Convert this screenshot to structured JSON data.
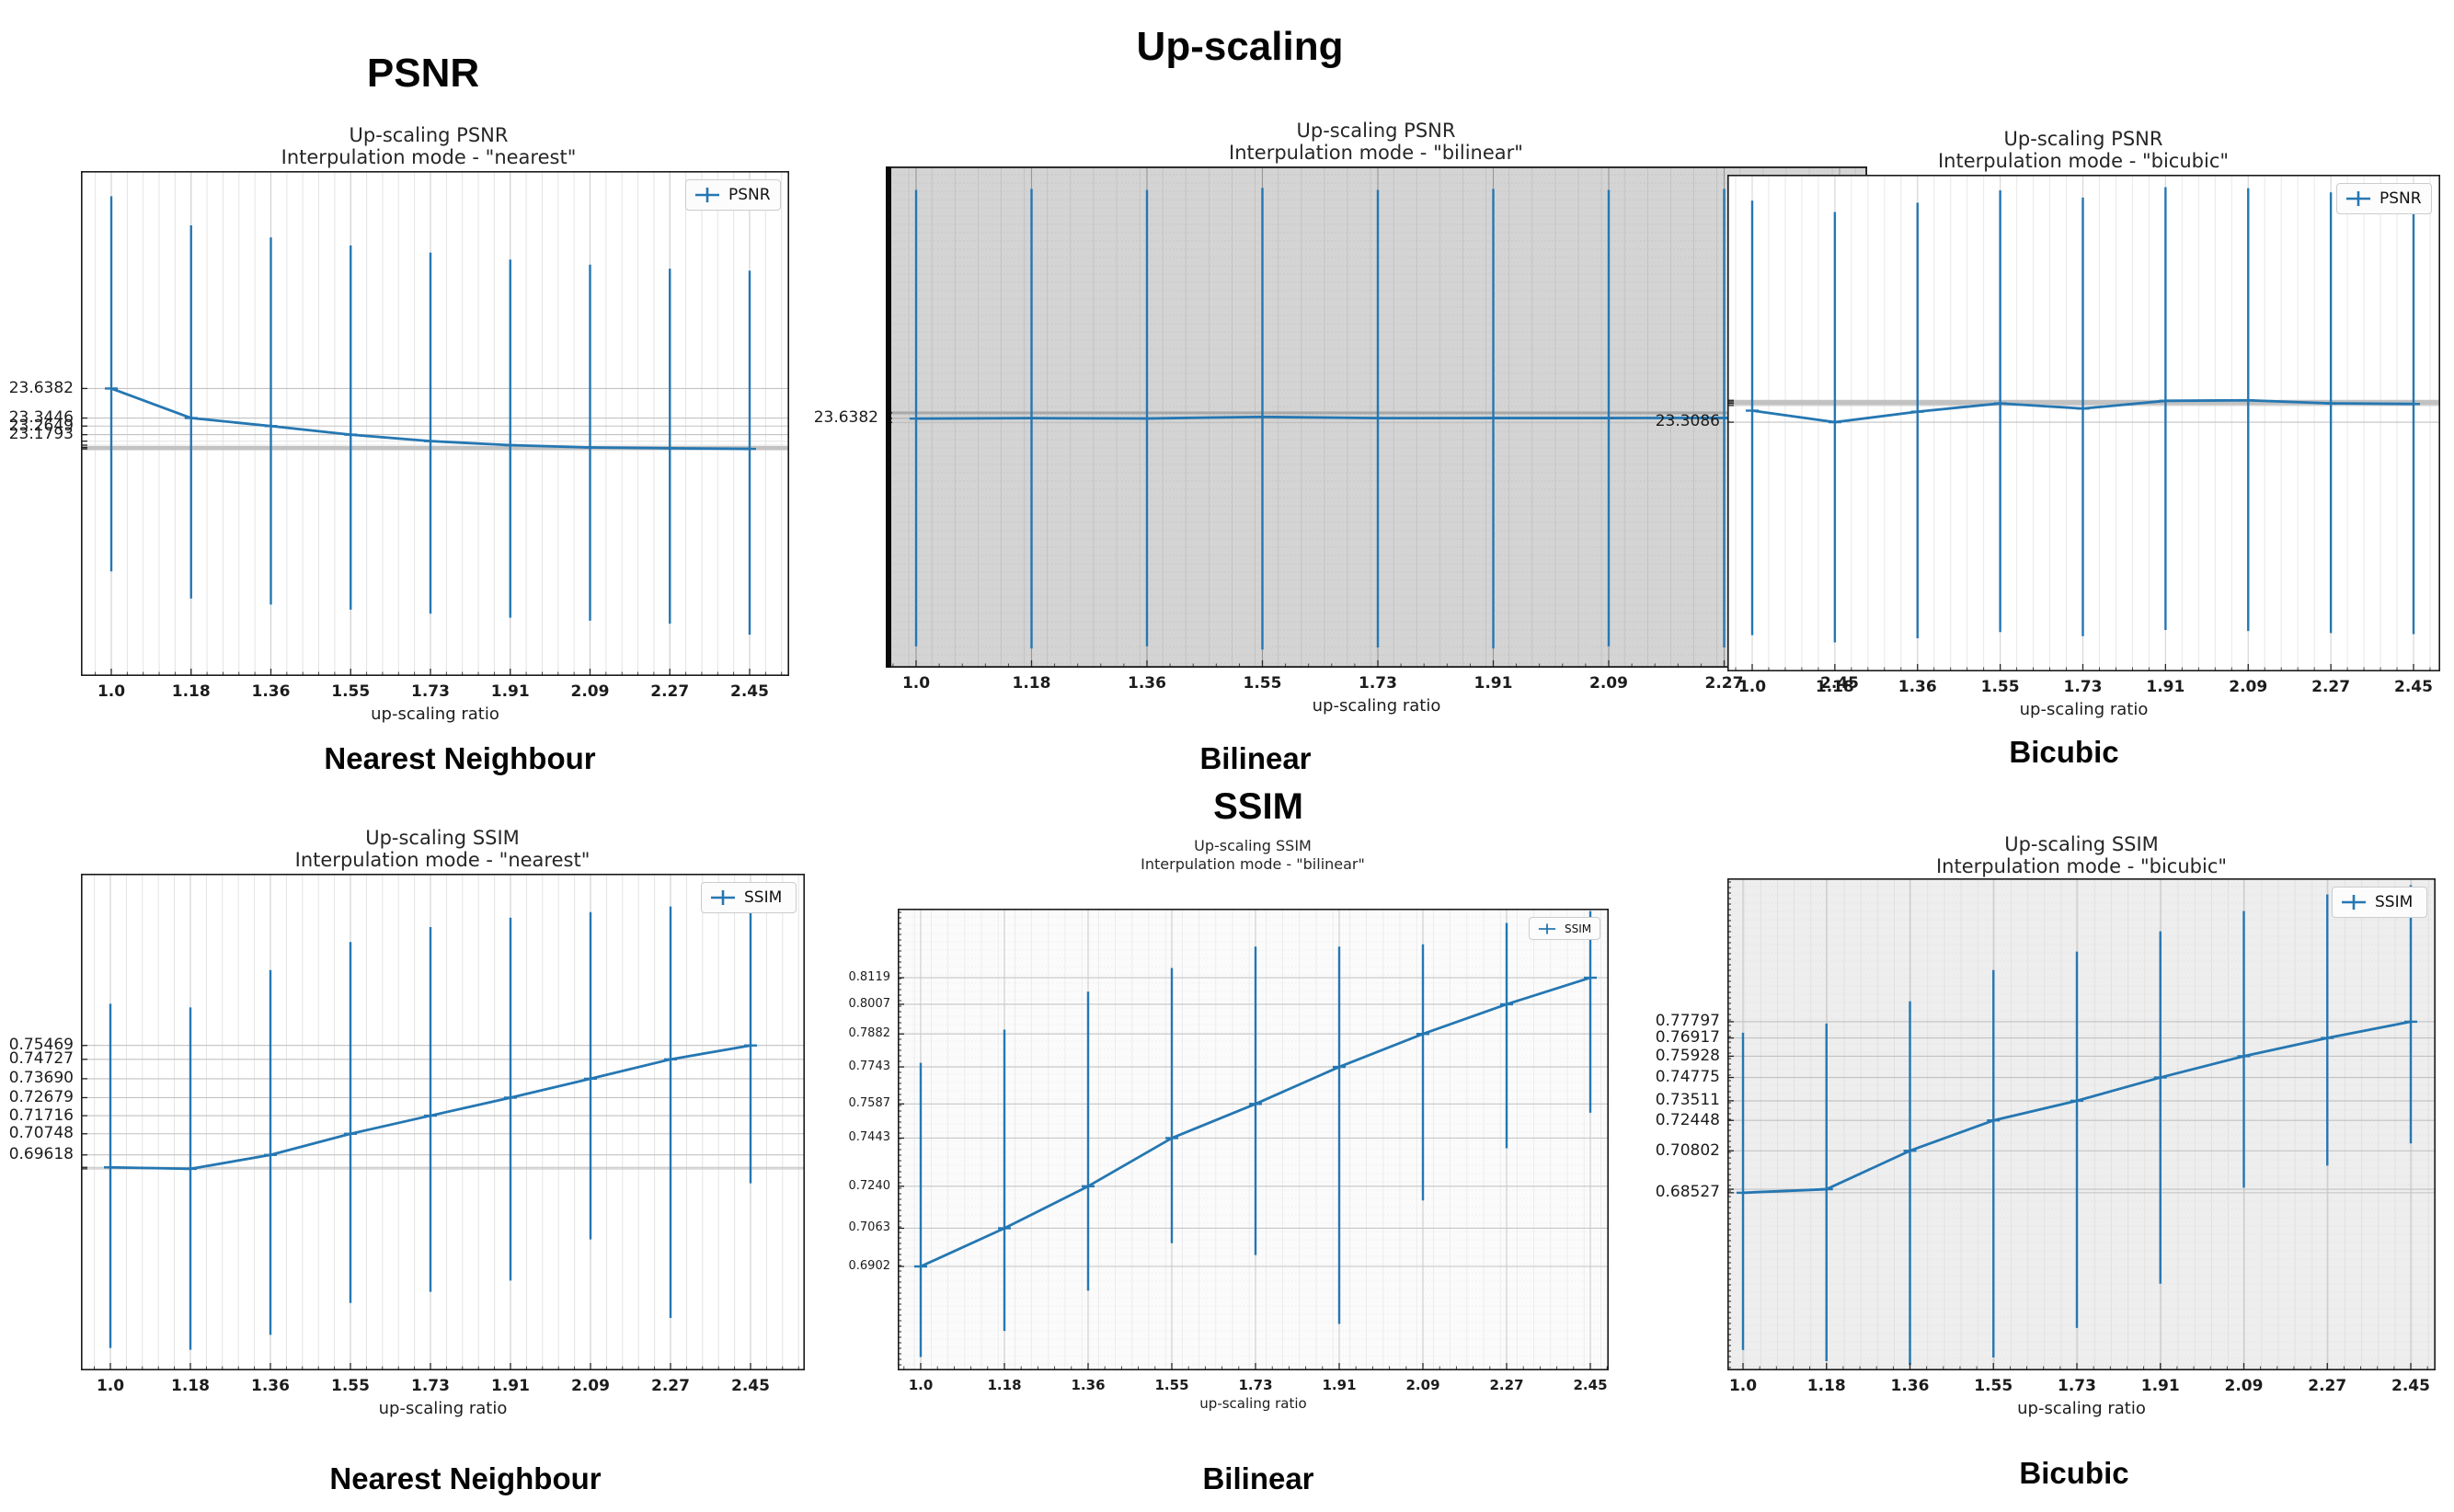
{
  "page": {
    "heading_psnr": "PSNR",
    "heading_upscaling": "Up-scaling",
    "heading_ssim": "SSIM",
    "row1_labels": [
      "Nearest Neighbour",
      "Bilinear",
      "Bicubic"
    ],
    "row2_labels": [
      "Nearest Neighbour",
      "Bilinear",
      "Bicubic"
    ],
    "accent_color": "#2577b2"
  },
  "chart_data": [
    {
      "id": "psnr-nearest",
      "type": "line",
      "title": [
        "Up-scaling PSNR",
        "Interpulation mode - \"nearest\""
      ],
      "legend": "PSNR",
      "xlabel": "up-scaling ratio",
      "x_labels": [
        "1.0",
        "1.18",
        "1.36",
        "1.55",
        "1.73",
        "1.91",
        "2.09",
        "2.27",
        "2.45"
      ],
      "x": [
        1.0,
        1.18,
        1.36,
        1.55,
        1.73,
        1.91,
        2.09,
        2.27,
        2.45
      ],
      "values": [
        23.6382,
        23.3446,
        23.2649,
        23.1793,
        23.115,
        23.075,
        23.052,
        23.044,
        23.038
      ],
      "err_high": [
        25.55,
        25.26,
        25.14,
        25.06,
        24.99,
        24.92,
        24.87,
        24.83,
        24.81
      ],
      "err_low": [
        21.82,
        21.55,
        21.49,
        21.44,
        21.4,
        21.36,
        21.33,
        21.3,
        21.19
      ],
      "ylim": [
        20.78,
        25.8
      ],
      "yticks": [
        {
          "value": 23.6382,
          "label": "23.6382"
        },
        {
          "value": 23.3446,
          "label": "23.3446"
        },
        {
          "value": 23.2649,
          "label": "23.2649"
        },
        {
          "value": 23.1793,
          "label": "23.1793"
        },
        {
          "value": 23.115,
          "label": "",
          "style": "faint"
        },
        {
          "value": 23.075,
          "label": "",
          "style": "faint"
        },
        {
          "value": 23.052,
          "label": "",
          "style": "thick"
        },
        {
          "value": 23.038,
          "label": "",
          "style": "thick"
        }
      ],
      "line_color": "#2577b2",
      "plot_bg": "#ffffff",
      "grid_minor": "#e4e4e4",
      "grid_major_v": "#cfcfcf",
      "grid_major_h": "#c2c2c2"
    },
    {
      "id": "psnr-bilinear",
      "type": "line",
      "title": [
        "Up-scaling PSNR",
        "Interpulation mode - \"bilinear\""
      ],
      "legend": "PSNR",
      "xlabel": "up-scaling ratio",
      "x_labels": [
        "1.0",
        "1.18",
        "1.36",
        "1.55",
        "1.73",
        "1.91",
        "2.09",
        "2.27",
        "2.45"
      ],
      "x": [
        1.0,
        1.18,
        1.36,
        1.55,
        1.73,
        1.91,
        2.09,
        2.27,
        2.45
      ],
      "values": [
        23.636,
        23.64,
        23.637,
        23.652,
        23.64,
        23.641,
        23.641,
        23.642,
        23.64
      ],
      "err_high": [
        25.78,
        25.79,
        25.78,
        25.8,
        25.78,
        25.79,
        25.78,
        25.79,
        25.77
      ],
      "err_low": [
        21.5,
        21.48,
        21.5,
        21.47,
        21.49,
        21.48,
        21.5,
        21.49,
        21.51
      ],
      "ylim": [
        21.3,
        26.0
      ],
      "yticks": [
        {
          "value": 23.6382,
          "label": "23.6382"
        },
        {
          "value": 23.69,
          "label": "",
          "style": "thick"
        },
        {
          "value": 23.6,
          "label": "",
          "style": "faint"
        }
      ],
      "line_color": "#2577b2",
      "plot_bg": "#d4d4d4",
      "grid_minor": "#bfbfbf",
      "grid_major_v": "#979797",
      "grid_major_h": "#a9a9a9"
    },
    {
      "id": "psnr-bicubic",
      "type": "line",
      "title": [
        "Up-scaling PSNR",
        "Interpulation mode - \"bicubic\""
      ],
      "legend": "PSNR",
      "xlabel": "up-scaling ratio",
      "x_labels": [
        "1.0",
        "1.18",
        "1.36",
        "1.55",
        "1.73",
        "1.91",
        "2.09",
        "2.27",
        "2.45"
      ],
      "x": [
        1.0,
        1.18,
        1.36,
        1.55,
        1.73,
        1.91,
        2.09,
        2.27,
        2.45
      ],
      "values": [
        23.42,
        23.3086,
        23.41,
        23.49,
        23.44,
        23.515,
        23.52,
        23.49,
        23.485
      ],
      "err_high": [
        25.45,
        25.34,
        25.43,
        25.55,
        25.48,
        25.58,
        25.57,
        25.53,
        25.51
      ],
      "err_low": [
        21.25,
        21.18,
        21.22,
        21.28,
        21.24,
        21.3,
        21.29,
        21.27,
        21.26
      ],
      "ylim": [
        20.9,
        25.7
      ],
      "yticks": [
        {
          "value": 23.3086,
          "label": "23.3086"
        },
        {
          "value": 23.47,
          "label": ""
        },
        {
          "value": 23.49,
          "label": "",
          "style": "thick"
        },
        {
          "value": 23.505,
          "label": "",
          "style": "thick"
        },
        {
          "value": 23.52,
          "label": ""
        }
      ],
      "line_color": "#2577b2",
      "plot_bg": "#ffffff",
      "grid_minor": "#e8e8e8",
      "grid_major_v": "#d6d6d6",
      "grid_major_h": "#c2c2c2"
    },
    {
      "id": "ssim-nearest",
      "type": "line",
      "title": [
        "Up-scaling SSIM",
        "Interpulation mode - \"nearest\""
      ],
      "legend": "SSIM",
      "xlabel": "up-scaling ratio",
      "x_labels": [
        "1.0",
        "1.18",
        "1.36",
        "1.55",
        "1.73",
        "1.91",
        "2.09",
        "2.27",
        "2.45"
      ],
      "x": [
        1.0,
        1.18,
        1.36,
        1.55,
        1.73,
        1.91,
        2.09,
        2.27,
        2.45
      ],
      "values": [
        0.68954,
        0.68872,
        0.69618,
        0.70748,
        0.71716,
        0.72679,
        0.7369,
        0.74727,
        0.75469
      ],
      "err_high": [
        0.777,
        0.775,
        0.795,
        0.81,
        0.818,
        0.823,
        0.826,
        0.829,
        0.828
      ],
      "err_low": [
        0.593,
        0.592,
        0.6,
        0.617,
        0.623,
        0.629,
        0.651,
        0.609,
        0.681
      ],
      "ylim": [
        0.581,
        0.8465
      ],
      "yticks": [
        {
          "value": 0.75469,
          "label": "0.75469"
        },
        {
          "value": 0.74727,
          "label": "0.74727"
        },
        {
          "value": 0.7369,
          "label": "0.73690"
        },
        {
          "value": 0.72679,
          "label": "0.72679"
        },
        {
          "value": 0.71716,
          "label": "0.71716"
        },
        {
          "value": 0.70748,
          "label": "0.70748"
        },
        {
          "value": 0.69618,
          "label": "0.69618"
        },
        {
          "value": 0.68954,
          "label": ""
        },
        {
          "value": 0.68872,
          "label": ""
        }
      ],
      "line_color": "#2577b2",
      "plot_bg": "#ffffff",
      "grid_minor": "#e4e4e4",
      "grid_major_v": "#cfcfcf",
      "grid_major_h": "#c2c2c2"
    },
    {
      "id": "ssim-bilinear",
      "type": "line",
      "title": [
        "Up-scaling SSIM",
        "Interpulation mode - \"bilinear\""
      ],
      "legend": "SSIM",
      "xlabel": "up-scaling ratio",
      "x_labels": [
        "1.0",
        "1.18",
        "1.36",
        "1.55",
        "1.73",
        "1.91",
        "2.09",
        "2.27",
        "2.45"
      ],
      "x": [
        1.0,
        1.18,
        1.36,
        1.55,
        1.73,
        1.91,
        2.09,
        2.27,
        2.45
      ],
      "values": [
        0.6902,
        0.7063,
        0.724,
        0.7443,
        0.7587,
        0.7743,
        0.7882,
        0.8007,
        0.8119
      ],
      "err_high": [
        0.776,
        0.79,
        0.806,
        0.816,
        0.825,
        0.825,
        0.826,
        0.835,
        0.84
      ],
      "err_low": [
        0.652,
        0.663,
        0.68,
        0.7,
        0.695,
        0.666,
        0.718,
        0.74,
        0.755
      ],
      "ylim": [
        0.6464,
        0.841
      ],
      "yticks": [
        {
          "value": 0.8119,
          "label": "0.8119"
        },
        {
          "value": 0.8007,
          "label": "0.8007"
        },
        {
          "value": 0.7882,
          "label": "0.7882"
        },
        {
          "value": 0.7743,
          "label": "0.7743"
        },
        {
          "value": 0.7587,
          "label": "0.7587"
        },
        {
          "value": 0.7443,
          "label": "0.7443"
        },
        {
          "value": 0.724,
          "label": "0.7240"
        },
        {
          "value": 0.7063,
          "label": "0.7063"
        },
        {
          "value": 0.6902,
          "label": "0.6902"
        }
      ],
      "line_color": "#2577b2",
      "plot_bg": "#fbfbfb",
      "grid_minor": "#e9e9e9",
      "grid_major_v": "#cccccc",
      "grid_major_h": "#c6c6c6"
    },
    {
      "id": "ssim-bicubic",
      "type": "line",
      "title": [
        "Up-scaling SSIM",
        "Interpulation mode - \"bicubic\""
      ],
      "legend": "SSIM",
      "xlabel": "up-scaling ratio",
      "x_labels": [
        "1.0",
        "1.18",
        "1.36",
        "1.55",
        "1.73",
        "1.91",
        "2.09",
        "2.27",
        "2.45"
      ],
      "x": [
        1.0,
        1.18,
        1.36,
        1.55,
        1.73,
        1.91,
        2.09,
        2.27,
        2.45
      ],
      "values": [
        0.68527,
        0.68718,
        0.70802,
        0.72448,
        0.73511,
        0.74775,
        0.75928,
        0.76917,
        0.77797
      ],
      "err_high": [
        0.772,
        0.777,
        0.789,
        0.806,
        0.816,
        0.827,
        0.838,
        0.847,
        0.852
      ],
      "err_low": [
        0.6,
        0.594,
        0.592,
        0.596,
        0.612,
        0.636,
        0.688,
        0.7,
        0.712
      ],
      "ylim": [
        0.589,
        0.8557
      ],
      "yticks": [
        {
          "value": 0.77797,
          "label": "0.77797"
        },
        {
          "value": 0.76917,
          "label": "0.76917"
        },
        {
          "value": 0.75928,
          "label": "0.75928"
        },
        {
          "value": 0.74775,
          "label": "0.74775"
        },
        {
          "value": 0.73511,
          "label": "0.73511"
        },
        {
          "value": 0.72448,
          "label": "0.72448"
        },
        {
          "value": 0.70802,
          "label": "0.70802"
        },
        {
          "value": 0.68527,
          "label": "0.68527"
        },
        {
          "value": 0.68718,
          "label": ""
        }
      ],
      "line_color": "#2577b2",
      "plot_bg": "#eeeeee",
      "grid_minor": "#dedede",
      "grid_major_v": "#c9c9c9",
      "grid_major_h": "#c2c2c2"
    }
  ]
}
